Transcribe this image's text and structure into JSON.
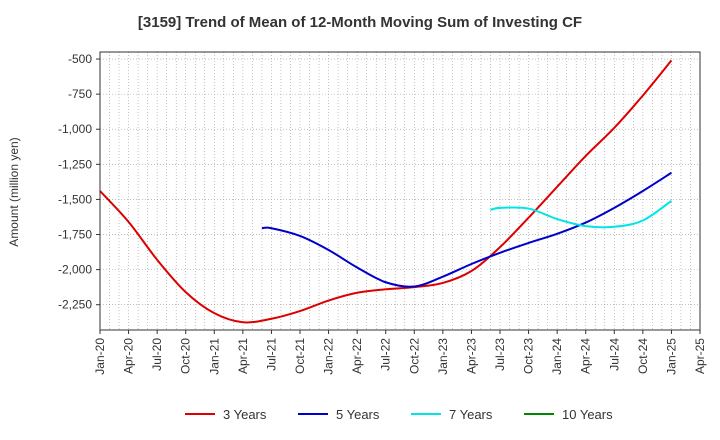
{
  "chart_data": {
    "type": "line",
    "title": "[3159]  Trend of Mean of 12-Month Moving Sum of Investing CF",
    "ylabel": "Amount (million yen)",
    "xlabel": "",
    "x_ticks": [
      "Jan-20",
      "Apr-20",
      "Jul-20",
      "Oct-20",
      "Jan-21",
      "Apr-21",
      "Jul-21",
      "Oct-21",
      "Jan-22",
      "Apr-22",
      "Jul-22",
      "Oct-22",
      "Jan-23",
      "Apr-23",
      "Jul-23",
      "Oct-23",
      "Jan-24",
      "Apr-24",
      "Jul-24",
      "Oct-24",
      "Jan-25",
      "Apr-25"
    ],
    "y_ticks": [
      -500,
      -750,
      -1000,
      -1250,
      -1500,
      -1750,
      -2000,
      -2250
    ],
    "y_tick_labels": [
      "-500",
      "-750",
      "-1,000",
      "-1,250",
      "-1,500",
      "-1,750",
      "-2,000",
      "-2,250"
    ],
    "ylim": [
      -2430,
      -450
    ],
    "grid": true,
    "legend_position": "bottom",
    "series": [
      {
        "name": "3 Years",
        "color": "#dd0000",
        "x": [
          "Jan-20",
          "Apr-20",
          "Jul-20",
          "Oct-20",
          "Jan-21",
          "Apr-21",
          "Jul-21",
          "Oct-21",
          "Jan-22",
          "Apr-22",
          "Jul-22",
          "Oct-22",
          "Jan-23",
          "Apr-23",
          "Jul-23",
          "Oct-23",
          "Jan-24",
          "Apr-24",
          "Jul-24",
          "Oct-24",
          "Jan-25"
        ],
        "values": [
          -1440,
          -1660,
          -1930,
          -2160,
          -2310,
          -2375,
          -2350,
          -2295,
          -2220,
          -2165,
          -2140,
          -2125,
          -2095,
          -2010,
          -1840,
          -1630,
          -1410,
          -1190,
          -990,
          -760,
          -510
        ]
      },
      {
        "name": "5 Years",
        "color": "#0000cc",
        "x": [
          "Jun-21",
          "Jul-21",
          "Oct-21",
          "Jan-22",
          "Apr-22",
          "Jul-22",
          "Oct-22",
          "Jan-23",
          "Apr-23",
          "Jul-23",
          "Oct-23",
          "Jan-24",
          "Apr-24",
          "Jul-24",
          "Oct-24",
          "Jan-25"
        ],
        "values": [
          -1705,
          -1705,
          -1760,
          -1860,
          -1985,
          -2090,
          -2120,
          -2050,
          -1960,
          -1880,
          -1810,
          -1745,
          -1665,
          -1560,
          -1440,
          -1310
        ]
      },
      {
        "name": "7 Years",
        "color": "#00e5e5",
        "x": [
          "Jun-23",
          "Jul-23",
          "Oct-23",
          "Jan-24",
          "Apr-24",
          "Jul-24",
          "Oct-24",
          "Jan-25"
        ],
        "values": [
          -1575,
          -1560,
          -1565,
          -1640,
          -1690,
          -1695,
          -1650,
          -1510
        ]
      },
      {
        "name": "10 Years",
        "color": "#008800",
        "x": [],
        "values": []
      }
    ]
  }
}
